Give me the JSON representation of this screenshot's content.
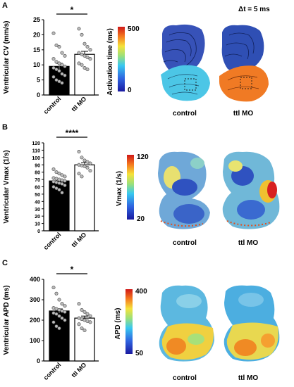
{
  "panels": [
    {
      "letter": "A",
      "chart_data": {
        "type": "bar",
        "ylabel": "Ventricular CV (mm/s)",
        "ylim": [
          0,
          25
        ],
        "yticks": [
          "0",
          "5",
          "10",
          "15",
          "20",
          "25"
        ],
        "categories": [
          "control",
          "ttl MO"
        ],
        "values": [
          9.5,
          13.5
        ],
        "sem": [
          1.0,
          1.0
        ],
        "bar_fills": [
          "#000000",
          "#ffffff"
        ],
        "points": [
          [
            20.5,
            16.5,
            16.0,
            14.0,
            13.0,
            12.0,
            11.0,
            10.5,
            10.0,
            9.5,
            9.0,
            8.5,
            8.0,
            7.0,
            6.5,
            6.0,
            5.0,
            4.5,
            4.0
          ],
          [
            22.0,
            20.0,
            17.0,
            16.0,
            15.0,
            14.0,
            13.5,
            13.0,
            12.5,
            12.0,
            10.5,
            10.0,
            9.0,
            8.5
          ]
        ],
        "significance": "*"
      },
      "colorbar": {
        "label": "Activation time (ms)",
        "max": "500",
        "min": "0"
      },
      "maps": [
        {
          "caption": "control"
        },
        {
          "caption": "ttl MO"
        }
      ],
      "interval_label": "Δt = 5 ms"
    },
    {
      "letter": "B",
      "chart_data": {
        "type": "bar",
        "ylabel": "Ventricular Vmax (1/s)",
        "ylim": [
          0,
          120
        ],
        "yticks": [
          "0",
          "10",
          "20",
          "30",
          "40",
          "50",
          "60",
          "70",
          "80",
          "90",
          "100",
          "110",
          "120"
        ],
        "categories": [
          "control",
          "ttl MO"
        ],
        "values": [
          68,
          90
        ],
        "sem": [
          2.0,
          3.0
        ],
        "bar_fills": [
          "#000000",
          "#ffffff"
        ],
        "points": [
          [
            84,
            80,
            78,
            76,
            74,
            72,
            71,
            70,
            69,
            68,
            67,
            66,
            65,
            64,
            62,
            60,
            58,
            56,
            52
          ],
          [
            108,
            100,
            96,
            94,
            92,
            90,
            89,
            88,
            86,
            82,
            78,
            74
          ]
        ],
        "significance": "****"
      },
      "colorbar": {
        "label": "Vmax (1/s)",
        "max": "120",
        "min": "20"
      },
      "maps": [
        {
          "caption": "control"
        },
        {
          "caption": "ttl MO"
        }
      ]
    },
    {
      "letter": "C",
      "chart_data": {
        "type": "bar",
        "ylabel": "Ventricular APD (ms)",
        "ylim": [
          0,
          400
        ],
        "yticks": [
          "0",
          "100",
          "200",
          "300",
          "400"
        ],
        "categories": [
          "control",
          "ttl MO"
        ],
        "values": [
          245,
          210
        ],
        "sem": [
          10,
          10
        ],
        "bar_fills": [
          "#000000",
          "#ffffff"
        ],
        "points": [
          [
            360,
            330,
            300,
            280,
            270,
            260,
            255,
            250,
            245,
            240,
            235,
            230,
            220,
            210,
            200,
            190,
            170,
            160
          ],
          [
            280,
            250,
            240,
            230,
            220,
            210,
            205,
            200,
            195,
            190,
            180,
            160,
            150
          ]
        ],
        "significance": "*"
      },
      "colorbar": {
        "label": "APD (ms)",
        "max": "400",
        "min": "50"
      },
      "maps": [
        {
          "caption": "control"
        },
        {
          "caption": "ttl MO"
        }
      ]
    }
  ]
}
